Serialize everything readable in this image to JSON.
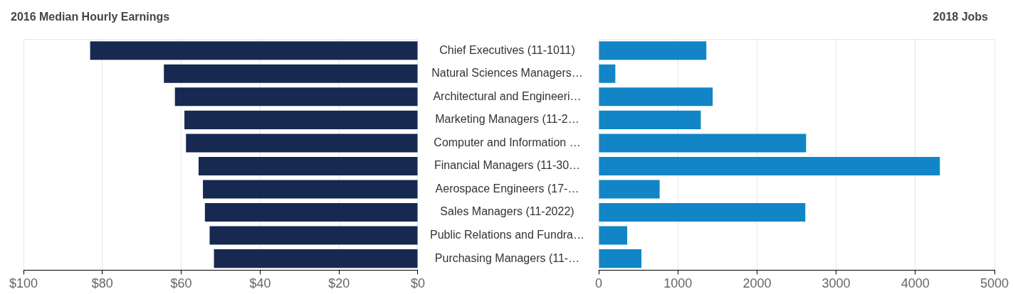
{
  "chart_data": [
    {
      "type": "bar",
      "title": "2016 Median Hourly Earnings",
      "orientation": "horizontal",
      "categories": [
        null,
        null,
        null,
        null,
        null,
        null,
        null,
        null,
        null,
        null
      ],
      "values": [
        83.1,
        64.4,
        61.6,
        59.2,
        58.8,
        55.6,
        54.5,
        54.0,
        52.8,
        51.7
      ],
      "color": "#172851",
      "xlim": [
        100,
        0
      ],
      "xticks": [
        {
          "value": 100,
          "label": "$100"
        },
        {
          "value": 80,
          "label": "$80"
        },
        {
          "value": 60,
          "label": "$60"
        },
        {
          "value": 40,
          "label": "$40"
        },
        {
          "value": 20,
          "label": "$20"
        },
        {
          "value": 0,
          "label": "$0"
        }
      ],
      "grid": "x",
      "tick_labels": "x"
    },
    {
      "type": "bar",
      "title": "2018 Jobs",
      "orientation": "horizontal",
      "categories": [
        "Chief Executives (11-1011)",
        "Natural Sciences Managers…",
        "Architectural and Engineeri…",
        "Marketing Managers (11-2…",
        "Computer and Information …",
        "Financial Managers (11-30…",
        "Aerospace Engineers (17-…",
        "Sales Managers (11-2022)",
        "Public Relations and Fundra…",
        "Purchasing Managers (11-…"
      ],
      "values": [
        1360,
        210,
        1440,
        1290,
        2620,
        4310,
        770,
        2610,
        360,
        540
      ],
      "color": "#1185c6",
      "xlim": [
        0,
        5000
      ],
      "xticks": [
        0,
        1000,
        2000,
        3000,
        4000,
        5000
      ],
      "grid": "x"
    }
  ]
}
